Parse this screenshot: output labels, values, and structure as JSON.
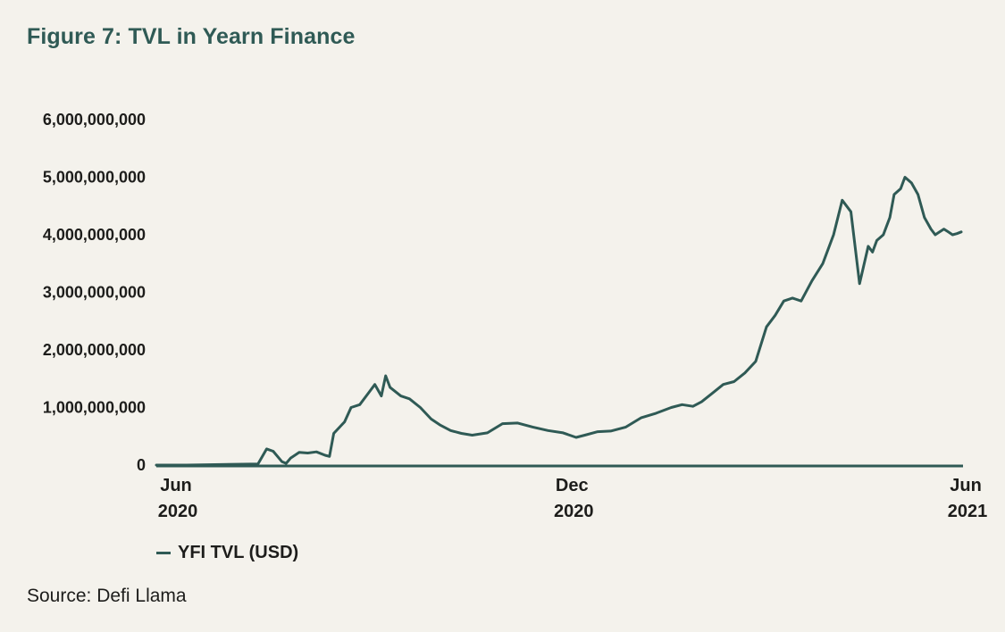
{
  "title": "Figure 7: TVL in Yearn Finance",
  "source": "Source: Defi Llama",
  "colors": {
    "background": "#f4f2ec",
    "line": "#2f5a55",
    "title": "#2f5a55",
    "text": "#1d1d1b"
  },
  "chart_data": {
    "type": "line",
    "title": "Figure 7: TVL in Yearn Finance",
    "xlabel": "",
    "ylabel": "",
    "ylim": [
      0,
      6000000000
    ],
    "xlim": [
      "2020-06-01",
      "2021-06-08"
    ],
    "grid": false,
    "legend_position": "bottom-left",
    "y_ticks": [
      0,
      1000000000,
      2000000000,
      3000000000,
      4000000000,
      5000000000,
      6000000000
    ],
    "y_tick_labels": [
      "0",
      "1,000,000,000",
      "2,000,000,000",
      "3,000,000,000",
      "4,000,000,000",
      "5,000,000,000",
      "6,000,000,000"
    ],
    "x_ticks": [
      {
        "date": "2020-06-01",
        "label_top": "Jun",
        "label_bottom": "2020"
      },
      {
        "date": "2020-12-01",
        "label_top": "Dec",
        "label_bottom": "2020"
      },
      {
        "date": "2021-06-01",
        "label_top": "Jun",
        "label_bottom": "2021"
      }
    ],
    "series": [
      {
        "name": "YFI TVL (USD)",
        "color": "#2f5a55",
        "x": [
          "2020-06-01",
          "2020-06-15",
          "2020-07-01",
          "2020-07-18",
          "2020-07-22",
          "2020-07-25",
          "2020-07-29",
          "2020-07-31",
          "2020-08-02",
          "2020-08-06",
          "2020-08-10",
          "2020-08-14",
          "2020-08-18",
          "2020-08-20",
          "2020-08-22",
          "2020-08-27",
          "2020-08-30",
          "2020-09-03",
          "2020-09-07",
          "2020-09-10",
          "2020-09-13",
          "2020-09-15",
          "2020-09-17",
          "2020-09-22",
          "2020-09-26",
          "2020-10-01",
          "2020-10-06",
          "2020-10-10",
          "2020-10-15",
          "2020-10-20",
          "2020-10-25",
          "2020-11-01",
          "2020-11-08",
          "2020-11-15",
          "2020-11-22",
          "2020-11-29",
          "2020-12-06",
          "2020-12-12",
          "2020-12-16",
          "2020-12-22",
          "2020-12-28",
          "2021-01-04",
          "2021-01-11",
          "2021-01-18",
          "2021-01-25",
          "2021-01-30",
          "2021-02-04",
          "2021-02-08",
          "2021-02-13",
          "2021-02-18",
          "2021-02-23",
          "2021-02-28",
          "2021-03-05",
          "2021-03-10",
          "2021-03-14",
          "2021-03-18",
          "2021-03-22",
          "2021-03-26",
          "2021-03-31",
          "2021-04-05",
          "2021-04-10",
          "2021-04-14",
          "2021-04-18",
          "2021-04-22",
          "2021-04-26",
          "2021-04-28",
          "2021-04-30",
          "2021-05-03",
          "2021-05-06",
          "2021-05-08",
          "2021-05-11",
          "2021-05-13",
          "2021-05-16",
          "2021-05-19",
          "2021-05-22",
          "2021-05-25",
          "2021-05-27",
          "2021-05-29",
          "2021-05-31",
          "2021-06-02",
          "2021-06-04",
          "2021-06-06",
          "2021-06-08"
        ],
        "y": [
          0,
          0,
          10000000,
          20000000,
          280000000,
          240000000,
          60000000,
          30000000,
          120000000,
          220000000,
          210000000,
          230000000,
          170000000,
          150000000,
          550000000,
          750000000,
          1000000000,
          1050000000,
          1250000000,
          1400000000,
          1200000000,
          1550000000,
          1350000000,
          1200000000,
          1150000000,
          1000000000,
          800000000,
          700000000,
          600000000,
          550000000,
          520000000,
          560000000,
          720000000,
          730000000,
          660000000,
          600000000,
          560000000,
          480000000,
          520000000,
          580000000,
          590000000,
          660000000,
          820000000,
          900000000,
          1000000000,
          1050000000,
          1020000000,
          1100000000,
          1250000000,
          1400000000,
          1450000000,
          1600000000,
          1800000000,
          2400000000,
          2600000000,
          2850000000,
          2900000000,
          2850000000,
          3200000000,
          3500000000,
          4000000000,
          4600000000,
          4400000000,
          3150000000,
          3800000000,
          3700000000,
          3900000000,
          4000000000,
          4300000000,
          4700000000,
          4800000000,
          5000000000,
          4900000000,
          4700000000,
          4300000000,
          4100000000,
          4000000000,
          4050000000,
          4100000000,
          4050000000,
          4000000000,
          4020000000,
          4050000000
        ]
      }
    ]
  }
}
